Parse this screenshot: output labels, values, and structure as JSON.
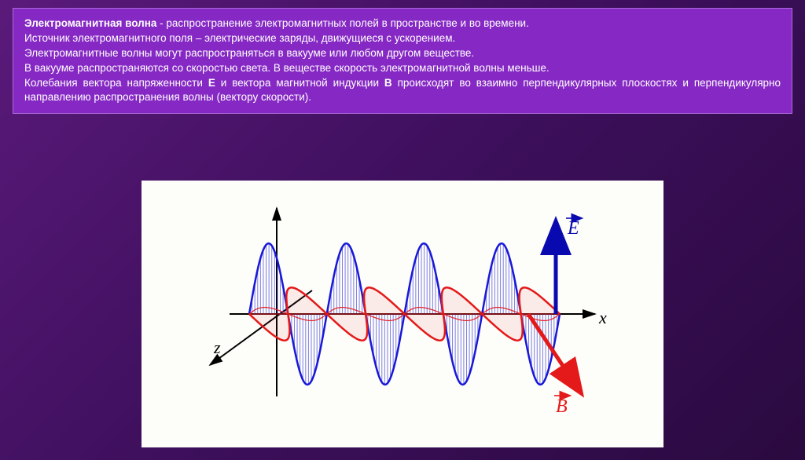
{
  "text": {
    "term": "Электромагнитная волна",
    "def1": " - распространение электромагнитных полей в пространстве и во времени.",
    "line2": "Источник электромагнитного поля – электрические заряды, движущиеся с ускорением.",
    "line3": "Электромагнитные волны могут распространяться в вакууме или любом другом веществе.",
    "line4": "В вакууме распространяются со скоростью света. В веществе скорость электромагнитной волны меньше.",
    "line5a": "Колебания вектора напряженности ",
    "vecE": "Е",
    "line5b": " и вектора магнитной индукции ",
    "vecB": "В",
    "line5c": " происходят во взаимно перпендикулярных плоскостях и перпендикулярно направлению распространения волны (вектору скорости)."
  },
  "diagram": {
    "type": "em-wave-3d",
    "background": "#fdfdfa",
    "axes": {
      "color": "#000000",
      "stroke_width": 2,
      "x_label": "x",
      "z_label": "z"
    },
    "e_wave": {
      "color": "#1818d8",
      "stroke_width": 2.5,
      "fill_color": "#1818d8",
      "fill_opacity": 0.15,
      "label": "E⃗",
      "label_color": "#0909b0",
      "amplitude": 90,
      "cycles": 4,
      "hatch_color": "#1818d8",
      "hatch_width": 1
    },
    "b_wave": {
      "color": "#e41919",
      "stroke_width": 2.5,
      "label": "B⃗",
      "label_color": "#e41919",
      "amplitude": 45,
      "cycles": 4
    },
    "arrow": {
      "e_arrow_color": "#0909b0",
      "e_arrow_width": 5,
      "b_arrow_color": "#e41919",
      "b_arrow_width": 5
    }
  },
  "colors": {
    "slide_bg_start": "#5a1a7a",
    "slide_bg_end": "#2a0a3f",
    "textbox_bg": "#8629c4",
    "text_color": "#ffffff"
  },
  "typography": {
    "body_fontsize": 13.5,
    "axis_fontsize": 22,
    "vector_fontsize": 24
  }
}
